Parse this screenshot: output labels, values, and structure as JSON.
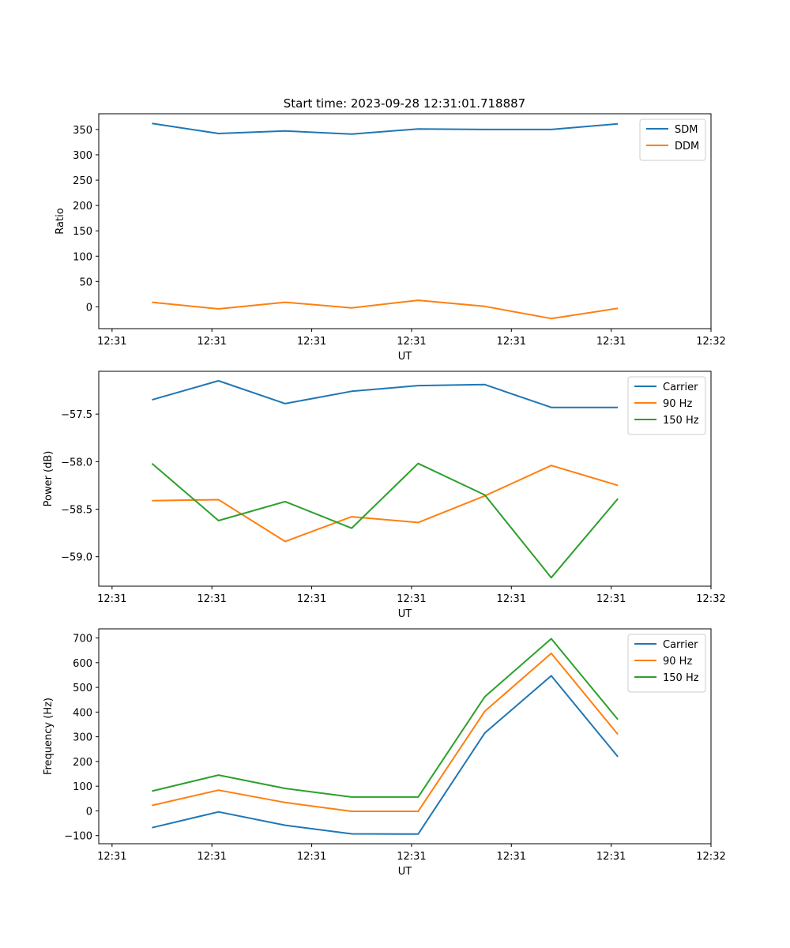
{
  "colors": {
    "c0": "#1f77b4",
    "c1": "#ff7f0e",
    "c2": "#2ca02c"
  },
  "chart_data": [
    {
      "type": "line",
      "title": "Start time: 2023-09-28 12:31:01.718887",
      "xlabel": "UT",
      "ylabel": "Ratio",
      "x": [
        0.5,
        1,
        1.5,
        2,
        2.5,
        3,
        3.5,
        4
      ],
      "xlim": [
        0.1,
        4.7
      ],
      "xticks": [
        0.2,
        0.95,
        1.7,
        2.45,
        3.2,
        3.95,
        4.7
      ],
      "xtick_labels": [
        "12:31",
        "12:31",
        "12:31",
        "12:31",
        "12:31",
        "12:31",
        "12:32"
      ],
      "ylim": [
        -43,
        381
      ],
      "yticks": [
        0,
        50,
        100,
        150,
        200,
        250,
        300,
        350
      ],
      "ytick_labels": [
        "0",
        "50",
        "100",
        "150",
        "200",
        "250",
        "300",
        "350"
      ],
      "legend_position": "top-right",
      "series": [
        {
          "name": "SDM",
          "color": "#1f77b4",
          "values": [
            362,
            342,
            347,
            341,
            351,
            350,
            350,
            361
          ]
        },
        {
          "name": "DDM",
          "color": "#ff7f0e",
          "values": [
            9,
            -4,
            9,
            -2,
            13,
            1,
            -23,
            -3
          ]
        }
      ]
    },
    {
      "type": "line",
      "title": "",
      "xlabel": "UT",
      "ylabel": "Power (dB)",
      "x": [
        0.5,
        1,
        1.5,
        2,
        2.5,
        3,
        3.5,
        4
      ],
      "xlim": [
        0.1,
        4.7
      ],
      "xticks": [
        0.2,
        0.95,
        1.7,
        2.45,
        3.2,
        3.95,
        4.7
      ],
      "xtick_labels": [
        "12:31",
        "12:31",
        "12:31",
        "12:31",
        "12:31",
        "12:31",
        "12:32"
      ],
      "ylim": [
        -59.31,
        -57.05
      ],
      "yticks": [
        -59.0,
        -58.5,
        -58.0,
        -57.5
      ],
      "ytick_labels": [
        "−59.0",
        "−58.5",
        "−58.0",
        "−57.5"
      ],
      "legend_position": "top-right",
      "series": [
        {
          "name": "Carrier",
          "color": "#1f77b4",
          "values": [
            -57.35,
            -57.15,
            -57.39,
            -57.26,
            -57.2,
            -57.19,
            -57.43,
            -57.43
          ]
        },
        {
          "name": "90 Hz",
          "color": "#ff7f0e",
          "values": [
            -58.41,
            -58.4,
            -58.84,
            -58.58,
            -58.64,
            -58.36,
            -58.04,
            -58.25
          ]
        },
        {
          "name": "150 Hz",
          "color": "#2ca02c",
          "values": [
            -58.02,
            -58.62,
            -58.42,
            -58.7,
            -58.02,
            -58.35,
            -59.22,
            -58.39
          ]
        }
      ]
    },
    {
      "type": "line",
      "title": "",
      "xlabel": "UT",
      "ylabel": "Frequency (Hz)",
      "x": [
        0.5,
        1,
        1.5,
        2,
        2.5,
        3,
        3.5,
        4
      ],
      "xlim": [
        0.1,
        4.7
      ],
      "xticks": [
        0.2,
        0.95,
        1.7,
        2.45,
        3.2,
        3.95,
        4.7
      ],
      "xtick_labels": [
        "12:31",
        "12:31",
        "12:31",
        "12:31",
        "12:31",
        "12:31",
        "12:32"
      ],
      "ylim": [
        -133,
        737
      ],
      "yticks": [
        -100,
        0,
        100,
        200,
        300,
        400,
        500,
        600,
        700
      ],
      "ytick_labels": [
        "−100",
        "0",
        "100",
        "200",
        "300",
        "400",
        "500",
        "600",
        "700"
      ],
      "legend_position": "top-right",
      "series": [
        {
          "name": "Carrier",
          "color": "#1f77b4",
          "values": [
            -68,
            -4,
            -58,
            -93,
            -94,
            315,
            547,
            219
          ]
        },
        {
          "name": "90 Hz",
          "color": "#ff7f0e",
          "values": [
            22,
            84,
            34,
            -2,
            -2,
            403,
            638,
            310
          ]
        },
        {
          "name": "150 Hz",
          "color": "#2ca02c",
          "values": [
            80,
            145,
            91,
            56,
            56,
            462,
            697,
            370
          ]
        }
      ]
    }
  ]
}
